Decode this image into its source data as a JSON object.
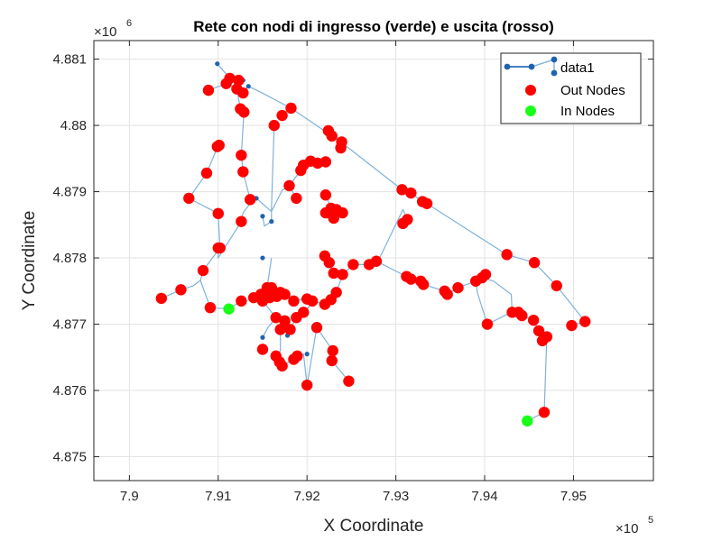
{
  "colors": {
    "background": "#ffffff",
    "axes_background": "#ffffff",
    "grid": "#e3e3e3",
    "axis": "#262626",
    "edge": "#7fb2da",
    "small_node": "#1f63b0",
    "out_node": "#ff0000",
    "in_node": "#19ff19"
  },
  "chart_data": {
    "type": "scatter",
    "title": "Rete con nodi di ingresso (verde) e uscita (rosso)",
    "xlabel": "X Coordinate",
    "ylabel": "Y Coordinate",
    "x_multiplier": "×10",
    "x_multiplier_exp": "5",
    "y_multiplier": "×10",
    "y_multiplier_exp": "6",
    "xlim": [
      7.896,
      7.959
    ],
    "ylim": [
      4.87464,
      4.88128
    ],
    "xticks": [
      7.9,
      7.91,
      7.92,
      7.93,
      7.94,
      7.95
    ],
    "xtick_labels": [
      "7.9",
      "7.91",
      "7.92",
      "7.93",
      "7.94",
      "7.95"
    ],
    "yticks": [
      4.875,
      4.876,
      4.877,
      4.878,
      4.879,
      4.88,
      4.881
    ],
    "ytick_labels": [
      "4.875",
      "4.876",
      "4.877",
      "4.878",
      "4.879",
      "4.88",
      "4.881"
    ],
    "grid": true,
    "legend_position": "top-right",
    "legend": [
      {
        "label": "data1",
        "kind": "graph",
        "color": "#1f63b0"
      },
      {
        "label": "Out Nodes",
        "kind": "marker",
        "color": "#ff0000"
      },
      {
        "label": "In Nodes",
        "kind": "marker",
        "color": "#19ff19"
      }
    ],
    "edges": [
      [
        [
          7.9099,
          4.88093
        ],
        [
          7.9113,
          4.88071
        ],
        [
          7.9123,
          4.88068
        ],
        [
          7.9128,
          4.88049
        ],
        [
          7.9134,
          4.88059
        ],
        [
          7.9148,
          4.8805
        ],
        [
          7.9182,
          4.88026
        ],
        [
          7.9238,
          4.87975
        ],
        [
          7.9307,
          4.87903
        ],
        [
          7.9317,
          4.87898
        ],
        [
          7.933,
          4.87885
        ],
        [
          7.9335,
          4.87882
        ],
        [
          7.9425,
          4.87805
        ],
        [
          7.9456,
          4.87793
        ],
        [
          7.9481,
          4.87758
        ],
        [
          7.9513,
          4.87704
        ],
        [
          7.9498,
          4.87698
        ]
      ],
      [
        [
          7.9089,
          4.88053
        ],
        [
          7.9109,
          4.88063
        ],
        [
          7.9121,
          4.88055
        ],
        [
          7.9125,
          4.88025
        ],
        [
          7.9129,
          4.8802
        ],
        [
          7.9126,
          4.87955
        ],
        [
          7.9128,
          4.8793
        ],
        [
          7.9136,
          4.87888
        ],
        [
          7.9143,
          4.8789
        ],
        [
          7.916,
          4.8787
        ]
      ],
      [
        [
          7.91,
          4.8797
        ],
        [
          7.9087,
          4.87928
        ],
        [
          7.9067,
          4.8789
        ],
        [
          7.91,
          4.87867
        ],
        [
          7.9102,
          4.87815
        ],
        [
          7.9083,
          4.87781
        ],
        [
          7.908,
          4.87766
        ],
        [
          7.9072,
          4.87758
        ],
        [
          7.9058,
          4.87752
        ],
        [
          7.9036,
          4.87739
        ]
      ],
      [
        [
          7.91,
          4.87815
        ],
        [
          7.91,
          4.878
        ],
        [
          7.9126,
          4.87855
        ],
        [
          7.9128,
          4.87868
        ],
        [
          7.9142,
          4.87893
        ]
      ],
      [
        [
          7.908,
          4.87766
        ],
        [
          7.9091,
          4.87725
        ],
        [
          7.9112,
          4.87723
        ],
        [
          7.9126,
          4.87735
        ]
      ],
      [
        [
          7.9163,
          4.88
        ],
        [
          7.916,
          4.87875
        ],
        [
          7.916,
          4.87855
        ],
        [
          7.9152,
          4.87848
        ],
        [
          7.915,
          4.87863
        ]
      ],
      [
        [
          7.916,
          4.8787
        ],
        [
          7.9172,
          4.87902
        ],
        [
          7.918,
          4.87909
        ],
        [
          7.9193,
          4.87932
        ],
        [
          7.9196,
          4.8794
        ],
        [
          7.9204,
          4.87946
        ],
        [
          7.9212,
          4.87943
        ],
        [
          7.9221,
          4.87945
        ]
      ],
      [
        [
          7.918,
          4.87909
        ],
        [
          7.9188,
          4.8789
        ]
      ],
      [
        [
          7.9221,
          4.87895
        ],
        [
          7.9227,
          4.87875
        ],
        [
          7.9233,
          4.87873
        ],
        [
          7.924,
          4.87868
        ]
      ],
      [
        [
          7.922,
          4.87803
        ],
        [
          7.9225,
          4.87793
        ],
        [
          7.923,
          4.87777
        ],
        [
          7.924,
          4.87775
        ],
        [
          7.9233,
          4.87748
        ],
        [
          7.9227,
          4.87737
        ],
        [
          7.922,
          4.8773
        ],
        [
          7.92,
          4.87738
        ],
        [
          7.9188,
          4.87737
        ]
      ],
      [
        [
          7.924,
          4.87775
        ],
        [
          7.9252,
          4.8779
        ],
        [
          7.927,
          4.8779
        ],
        [
          7.928,
          4.87795
        ],
        [
          7.9308,
          4.87873
        ],
        [
          7.9313,
          4.87858
        ]
      ],
      [
        [
          7.9278,
          4.87795
        ],
        [
          7.9312,
          4.87772
        ],
        [
          7.9317,
          4.87768
        ],
        [
          7.9328,
          4.87765
        ],
        [
          7.9331,
          4.8776
        ],
        [
          7.9355,
          4.8775
        ],
        [
          7.9358,
          4.87745
        ],
        [
          7.937,
          4.87755
        ],
        [
          7.939,
          4.87765
        ],
        [
          7.9397,
          4.8777
        ],
        [
          7.9401,
          4.87775
        ]
      ],
      [
        [
          7.9397,
          4.8777
        ],
        [
          7.941,
          4.87765
        ],
        [
          7.943,
          4.87745
        ],
        [
          7.9431,
          4.87718
        ],
        [
          7.9438,
          4.87718
        ],
        [
          7.9442,
          4.87713
        ],
        [
          7.9455,
          4.87706
        ],
        [
          7.9461,
          4.8769
        ],
        [
          7.947,
          4.87681
        ],
        [
          7.9467,
          4.87567
        ],
        [
          7.9448,
          4.87554
        ]
      ],
      [
        [
          7.939,
          4.87765
        ],
        [
          7.9392,
          4.87747
        ],
        [
          7.9403,
          4.877
        ],
        [
          7.943,
          4.87718
        ]
      ],
      [
        [
          7.9148,
          4.87745
        ],
        [
          7.916,
          4.87755
        ],
        [
          7.917,
          4.87748
        ],
        [
          7.9185,
          4.87735
        ],
        [
          7.92,
          4.87738
        ]
      ],
      [
        [
          7.915,
          4.87735
        ],
        [
          7.9154,
          4.8774
        ],
        [
          7.9158,
          4.8774
        ],
        [
          7.9162,
          4.87745
        ],
        [
          7.9166,
          4.87742
        ],
        [
          7.917,
          4.8774
        ],
        [
          7.9175,
          4.87745
        ]
      ],
      [
        [
          7.915,
          4.87735
        ],
        [
          7.9165,
          4.8771
        ],
        [
          7.9175,
          4.87705
        ],
        [
          7.917,
          4.87692
        ],
        [
          7.9181,
          4.87692
        ],
        [
          7.9188,
          4.8771
        ],
        [
          7.9196,
          4.87718
        ],
        [
          7.92,
          4.87722
        ],
        [
          7.9206,
          4.87735
        ]
      ],
      [
        [
          7.916,
          4.878
        ],
        [
          7.9155,
          4.87755
        ],
        [
          7.915,
          4.87735
        ],
        [
          7.914,
          4.8774
        ]
      ],
      [
        [
          7.917,
          4.87692
        ],
        [
          7.917,
          4.8766
        ],
        [
          7.9165,
          4.87652
        ],
        [
          7.9169,
          4.87643
        ],
        [
          7.9172,
          4.87637
        ],
        [
          7.9185,
          4.87647
        ],
        [
          7.9189,
          4.87652
        ],
        [
          7.9196,
          4.87655
        ],
        [
          7.92,
          4.87608
        ],
        [
          7.9211,
          4.87695
        ],
        [
          7.9229,
          4.8766
        ],
        [
          7.9228,
          4.87645
        ],
        [
          7.9247,
          4.87614
        ]
      ],
      [
        [
          7.9178,
          4.87683
        ],
        [
          7.9172,
          4.87705
        ]
      ],
      [
        [
          7.915,
          4.8768
        ],
        [
          7.9156,
          4.87695
        ],
        [
          7.9162,
          4.87705
        ]
      ]
    ],
    "small_nodes": [
      [
        7.9099,
        4.88093
      ],
      [
        7.9128,
        4.88068
      ],
      [
        7.9134,
        4.88059
      ],
      [
        7.9143,
        4.8789
      ],
      [
        7.915,
        4.87863
      ],
      [
        7.916,
        4.87855
      ],
      [
        7.915,
        4.878
      ],
      [
        7.9036,
        4.87739
      ],
      [
        7.915,
        4.8768
      ],
      [
        7.9178,
        4.87683
      ],
      [
        7.92,
        4.87655
      ],
      [
        7.9188,
        4.87737
      ]
    ],
    "out_nodes": [
      [
        7.9113,
        4.88071
      ],
      [
        7.9123,
        4.88068
      ],
      [
        7.9109,
        4.88063
      ],
      [
        7.9089,
        4.88053
      ],
      [
        7.9121,
        4.88055
      ],
      [
        7.9128,
        4.88049
      ],
      [
        7.9125,
        4.88025
      ],
      [
        7.9129,
        4.8802
      ],
      [
        7.9182,
        4.88026
      ],
      [
        7.9172,
        4.88015
      ],
      [
        7.9163,
        4.88
      ],
      [
        7.9224,
        4.87992
      ],
      [
        7.9228,
        4.87984
      ],
      [
        7.9239,
        4.87975
      ],
      [
        7.9238,
        4.87966
      ],
      [
        7.9101,
        4.8797
      ],
      [
        7.9099,
        4.87968
      ],
      [
        7.9126,
        4.87955
      ],
      [
        7.9087,
        4.87928
      ],
      [
        7.9128,
        4.8793
      ],
      [
        7.9204,
        4.87946
      ],
      [
        7.9212,
        4.87943
      ],
      [
        7.9221,
        4.87945
      ],
      [
        7.9196,
        4.8794
      ],
      [
        7.9193,
        4.87932
      ],
      [
        7.918,
        4.87909
      ],
      [
        7.9307,
        4.87903
      ],
      [
        7.9317,
        4.87898
      ],
      [
        7.9067,
        4.8789
      ],
      [
        7.9136,
        4.87888
      ],
      [
        7.9188,
        4.8789
      ],
      [
        7.933,
        4.87885
      ],
      [
        7.9335,
        4.87882
      ],
      [
        7.9221,
        4.87895
      ],
      [
        7.9227,
        4.87875
      ],
      [
        7.9233,
        4.87873
      ],
      [
        7.924,
        4.87868
      ],
      [
        7.91,
        4.87867
      ],
      [
        7.9221,
        4.87868
      ],
      [
        7.923,
        4.8786
      ],
      [
        7.9126,
        4.87855
      ],
      [
        7.9313,
        4.87858
      ],
      [
        7.9308,
        4.87852
      ],
      [
        7.9102,
        4.87815
      ],
      [
        7.91,
        4.87815
      ],
      [
        7.922,
        4.87803
      ],
      [
        7.9225,
        4.87793
      ],
      [
        7.9425,
        4.87805
      ],
      [
        7.9278,
        4.87795
      ],
      [
        7.927,
        4.8779
      ],
      [
        7.9252,
        4.8779
      ],
      [
        7.924,
        4.87775
      ],
      [
        7.9083,
        4.87781
      ],
      [
        7.9456,
        4.87793
      ],
      [
        7.923,
        4.87777
      ],
      [
        7.9312,
        4.87772
      ],
      [
        7.9317,
        4.87768
      ],
      [
        7.9401,
        4.87775
      ],
      [
        7.9397,
        4.8777
      ],
      [
        7.9328,
        4.87765
      ],
      [
        7.9481,
        4.87758
      ],
      [
        7.937,
        4.87755
      ],
      [
        7.9331,
        4.8776
      ],
      [
        7.939,
        4.87765
      ],
      [
        7.9058,
        4.87752
      ],
      [
        7.9155,
        4.87755
      ],
      [
        7.916,
        4.87755
      ],
      [
        7.917,
        4.87748
      ],
      [
        7.9175,
        4.87745
      ],
      [
        7.9355,
        4.8775
      ],
      [
        7.9358,
        4.87745
      ],
      [
        7.9148,
        4.87745
      ],
      [
        7.914,
        4.8774
      ],
      [
        7.9154,
        4.8774
      ],
      [
        7.9162,
        4.87745
      ],
      [
        7.9036,
        4.87739
      ],
      [
        7.9126,
        4.87735
      ],
      [
        7.9185,
        4.87735
      ],
      [
        7.9233,
        4.87748
      ],
      [
        7.9227,
        4.87737
      ],
      [
        7.922,
        4.8773
      ],
      [
        7.92,
        4.87738
      ],
      [
        7.9206,
        4.87735
      ],
      [
        7.9091,
        4.87725
      ],
      [
        7.9158,
        4.8774
      ],
      [
        7.9166,
        4.87742
      ],
      [
        7.915,
        4.87735
      ],
      [
        7.9165,
        4.8771
      ],
      [
        7.9175,
        4.87705
      ],
      [
        7.9196,
        4.87718
      ],
      [
        7.9442,
        4.87713
      ],
      [
        7.9438,
        4.87718
      ],
      [
        7.9431,
        4.87718
      ],
      [
        7.9455,
        4.87706
      ],
      [
        7.917,
        4.87692
      ],
      [
        7.9181,
        4.87692
      ],
      [
        7.9188,
        4.8771
      ],
      [
        7.9211,
        4.87695
      ],
      [
        7.9403,
        4.877
      ],
      [
        7.9513,
        4.87704
      ],
      [
        7.9498,
        4.87698
      ],
      [
        7.9461,
        4.8769
      ],
      [
        7.947,
        4.87681
      ],
      [
        7.9465,
        4.87675
      ],
      [
        7.9229,
        4.8766
      ],
      [
        7.9228,
        4.87645
      ],
      [
        7.915,
        4.87662
      ],
      [
        7.9165,
        4.87652
      ],
      [
        7.9169,
        4.87643
      ],
      [
        7.9172,
        4.87637
      ],
      [
        7.9185,
        4.87647
      ],
      [
        7.9189,
        4.87652
      ],
      [
        7.9247,
        4.87614
      ],
      [
        7.92,
        4.87608
      ],
      [
        7.9467,
        4.87567
      ]
    ],
    "in_nodes": [
      [
        7.9112,
        4.87723
      ],
      [
        7.9448,
        4.87554
      ]
    ]
  }
}
